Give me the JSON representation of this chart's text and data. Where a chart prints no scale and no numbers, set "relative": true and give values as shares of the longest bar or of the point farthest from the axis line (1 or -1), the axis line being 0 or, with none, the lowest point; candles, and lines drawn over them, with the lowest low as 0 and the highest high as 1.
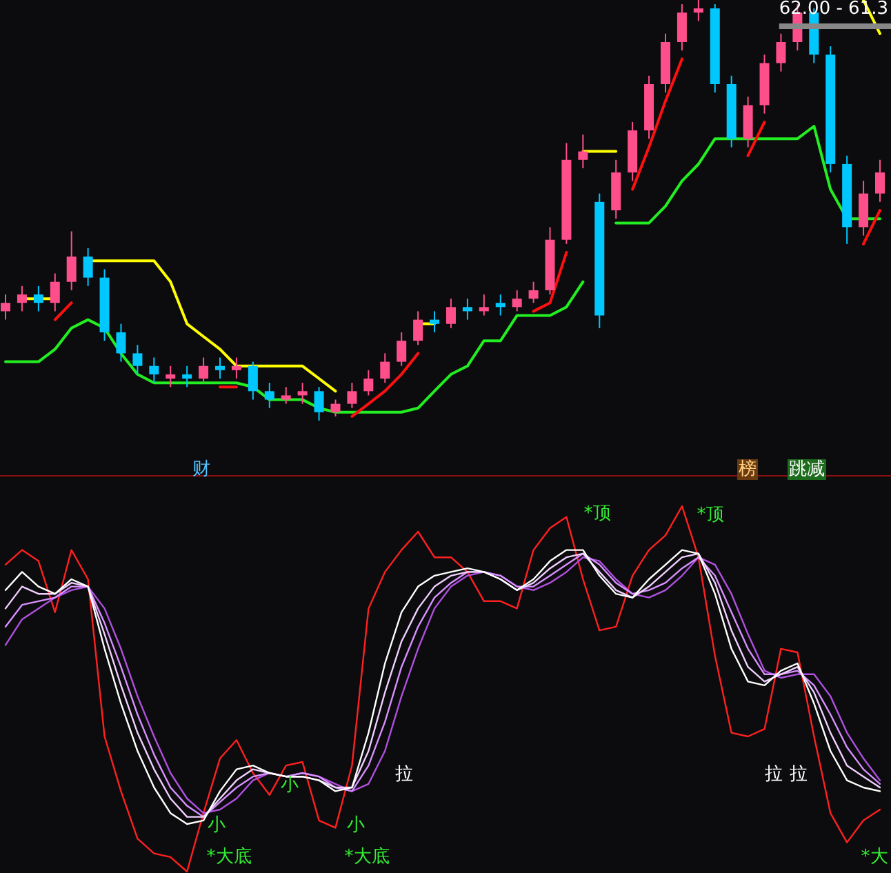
{
  "chart_data": [
    {
      "type": "candlestick",
      "relative": true,
      "categories": [
        null,
        null,
        null,
        null,
        null,
        null,
        null,
        null,
        null,
        null,
        null,
        null,
        null,
        null,
        null,
        null,
        null,
        null,
        null,
        null,
        null,
        null,
        null,
        null,
        null,
        null,
        null,
        null,
        null,
        null,
        null,
        null,
        null,
        null,
        null,
        null,
        null,
        null,
        null,
        null,
        null,
        null,
        null,
        null,
        null,
        null,
        null,
        null,
        null,
        null,
        null,
        null,
        null,
        null
      ],
      "ohlc": [
        [
          0.26,
          0.3,
          0.24,
          0.28
        ],
        [
          0.28,
          0.32,
          0.26,
          0.3
        ],
        [
          0.3,
          0.32,
          0.26,
          0.28
        ],
        [
          0.28,
          0.35,
          0.26,
          0.33
        ],
        [
          0.33,
          0.45,
          0.31,
          0.39
        ],
        [
          0.39,
          0.41,
          0.32,
          0.34
        ],
        [
          0.34,
          0.36,
          0.19,
          0.21
        ],
        [
          0.21,
          0.23,
          0.14,
          0.16
        ],
        [
          0.16,
          0.18,
          0.11,
          0.13
        ],
        [
          0.13,
          0.15,
          0.09,
          0.11
        ],
        [
          0.1,
          0.13,
          0.08,
          0.11
        ],
        [
          0.11,
          0.13,
          0.08,
          0.1
        ],
        [
          0.1,
          0.15,
          0.09,
          0.13
        ],
        [
          0.13,
          0.15,
          0.1,
          0.12
        ],
        [
          0.12,
          0.15,
          0.1,
          0.13
        ],
        [
          0.13,
          0.14,
          0.05,
          0.07
        ],
        [
          0.07,
          0.09,
          0.03,
          0.05
        ],
        [
          0.05,
          0.08,
          0.04,
          0.06
        ],
        [
          0.06,
          0.09,
          0.04,
          0.07
        ],
        [
          0.07,
          0.08,
          0.0,
          0.02
        ],
        [
          0.02,
          0.05,
          0.01,
          0.04
        ],
        [
          0.04,
          0.09,
          0.03,
          0.07
        ],
        [
          0.07,
          0.12,
          0.06,
          0.1
        ],
        [
          0.1,
          0.16,
          0.09,
          0.14
        ],
        [
          0.14,
          0.21,
          0.13,
          0.19
        ],
        [
          0.19,
          0.26,
          0.18,
          0.24
        ],
        [
          0.24,
          0.26,
          0.21,
          0.23
        ],
        [
          0.23,
          0.29,
          0.22,
          0.27
        ],
        [
          0.27,
          0.29,
          0.24,
          0.26
        ],
        [
          0.26,
          0.3,
          0.25,
          0.27
        ],
        [
          0.28,
          0.3,
          0.25,
          0.27
        ],
        [
          0.27,
          0.31,
          0.26,
          0.29
        ],
        [
          0.29,
          0.33,
          0.28,
          0.31
        ],
        [
          0.31,
          0.46,
          0.3,
          0.43
        ],
        [
          0.43,
          0.66,
          0.42,
          0.62
        ],
        [
          0.62,
          0.68,
          0.6,
          0.64
        ],
        [
          0.52,
          0.54,
          0.22,
          0.25
        ],
        [
          0.5,
          0.62,
          0.48,
          0.59
        ],
        [
          0.59,
          0.71,
          0.57,
          0.69
        ],
        [
          0.69,
          0.82,
          0.67,
          0.8
        ],
        [
          0.8,
          0.92,
          0.78,
          0.9
        ],
        [
          0.9,
          0.99,
          0.88,
          0.97
        ],
        [
          0.97,
          1.0,
          0.95,
          0.98
        ],
        [
          0.98,
          0.99,
          0.78,
          0.8
        ],
        [
          0.8,
          0.82,
          0.65,
          0.67
        ],
        [
          0.67,
          0.77,
          0.65,
          0.75
        ],
        [
          0.75,
          0.87,
          0.73,
          0.85
        ],
        [
          0.85,
          0.92,
          0.83,
          0.9
        ],
        [
          0.9,
          0.99,
          0.88,
          0.97
        ],
        [
          0.97,
          0.98,
          0.85,
          0.87
        ],
        [
          0.87,
          0.89,
          0.59,
          0.61
        ],
        [
          0.61,
          0.63,
          0.42,
          0.46
        ],
        [
          0.46,
          0.57,
          0.44,
          0.54
        ],
        [
          0.54,
          0.62,
          0.52,
          0.59
        ]
      ],
      "colors": [
        "#ff4f8b",
        "#ff4f8b",
        "#00c8ff",
        "#ff4f8b",
        "#ff4f8b",
        "#00c8ff",
        "#00c8ff",
        "#00c8ff",
        "#00c8ff",
        "#00c8ff",
        "#ff4f8b",
        "#00c8ff",
        "#ff4f8b",
        "#00c8ff",
        "#ff4f8b",
        "#00c8ff",
        "#00c8ff",
        "#ff4f8b",
        "#ff4f8b",
        "#00c8ff",
        "#ff4f8b",
        "#ff4f8b",
        "#ff4f8b",
        "#ff4f8b",
        "#ff4f8b",
        "#ff4f8b",
        "#00c8ff",
        "#ff4f8b",
        "#00c8ff",
        "#ff4f8b",
        "#00c8ff",
        "#ff4f8b",
        "#ff4f8b",
        "#ff4f8b",
        "#ff4f8b",
        "#ff4f8b",
        "#00c8ff",
        "#ff4f8b",
        "#ff4f8b",
        "#ff4f8b",
        "#ff4f8b",
        "#ff4f8b",
        "#ff4f8b",
        "#00c8ff",
        "#00c8ff",
        "#ff4f8b",
        "#ff4f8b",
        "#ff4f8b",
        "#ff4f8b",
        "#00c8ff",
        "#00c8ff",
        "#00c8ff",
        "#ff4f8b",
        "#ff4f8b"
      ],
      "series": [
        {
          "type": "line",
          "color": "#ffff00",
          "values": [
            null,
            0.29,
            0.29,
            0.29,
            null,
            0.38,
            0.38,
            0.38,
            0.38,
            0.38,
            0.33,
            0.23,
            0.2,
            0.17,
            0.13,
            0.13,
            0.13,
            0.13,
            0.13,
            0.1,
            0.07,
            null,
            null,
            null,
            null,
            0.23,
            0.23,
            null,
            null,
            null,
            null,
            null,
            null,
            null,
            null,
            0.64,
            0.64,
            0.64,
            null,
            null,
            null,
            null,
            null,
            null,
            null,
            null,
            null,
            null,
            null,
            null,
            null,
            null,
            1.0,
            0.92
          ]
        },
        {
          "type": "line",
          "color": "#22ee22",
          "values": [
            0.14,
            0.14,
            0.14,
            0.17,
            0.22,
            0.24,
            0.22,
            0.16,
            0.11,
            0.09,
            0.09,
            0.09,
            0.09,
            0.09,
            0.09,
            0.08,
            0.05,
            0.05,
            0.05,
            0.03,
            0.02,
            0.02,
            0.02,
            0.02,
            0.02,
            0.03,
            0.07,
            0.11,
            0.13,
            0.19,
            0.19,
            0.25,
            0.25,
            0.25,
            0.27,
            0.33,
            null,
            0.47,
            0.47,
            0.47,
            0.51,
            0.57,
            0.61,
            0.67,
            0.67,
            0.67,
            0.67,
            0.67,
            0.67,
            0.7,
            0.55,
            0.48,
            0.48,
            0.48
          ]
        },
        {
          "type": "line",
          "color": "#ff1010",
          "values": [
            null,
            null,
            null,
            0.24,
            0.28,
            null,
            null,
            null,
            null,
            null,
            null,
            null,
            null,
            0.08,
            0.08,
            null,
            null,
            null,
            null,
            null,
            null,
            0.01,
            0.04,
            0.07,
            0.11,
            0.16,
            null,
            null,
            null,
            null,
            null,
            null,
            0.26,
            0.28,
            0.4,
            null,
            null,
            null,
            0.55,
            0.65,
            0.76,
            0.86,
            null,
            null,
            null,
            0.63,
            0.71,
            null,
            null,
            null,
            null,
            null,
            0.42,
            0.5
          ]
        }
      ],
      "annotations": [
        "财",
        "榜",
        "跳减",
        "62.00 - 61.3"
      ]
    },
    {
      "type": "line",
      "relative": true,
      "categories": [
        null,
        null,
        null,
        null,
        null,
        null,
        null,
        null,
        null,
        null,
        null,
        null,
        null,
        null,
        null,
        null,
        null,
        null,
        null,
        null,
        null,
        null,
        null,
        null,
        null,
        null,
        null,
        null,
        null,
        null,
        null,
        null,
        null,
        null,
        null,
        null,
        null,
        null,
        null,
        null,
        null,
        null,
        null,
        null,
        null,
        null,
        null,
        null,
        null,
        null,
        null,
        null,
        null,
        null
      ],
      "series": [
        {
          "color": "#ff2020",
          "values": [
            0.84,
            0.88,
            0.85,
            0.71,
            0.88,
            0.8,
            0.37,
            0.22,
            0.09,
            0.05,
            0.04,
            0.0,
            0.16,
            0.31,
            0.36,
            0.27,
            0.21,
            0.29,
            0.3,
            0.14,
            0.12,
            0.29,
            0.72,
            0.82,
            0.88,
            0.93,
            0.86,
            0.86,
            0.82,
            0.74,
            0.74,
            0.72,
            0.88,
            0.94,
            0.97,
            0.8,
            0.66,
            0.67,
            0.81,
            0.88,
            0.92,
            1.0,
            0.86,
            0.59,
            0.38,
            0.37,
            0.39,
            0.61,
            0.6,
            0.37,
            0.16,
            0.08,
            0.14,
            0.17
          ]
        },
        {
          "color": "#b050e0",
          "values": [
            0.62,
            0.69,
            0.72,
            0.75,
            0.77,
            0.78,
            0.72,
            0.61,
            0.48,
            0.37,
            0.27,
            0.2,
            0.16,
            0.17,
            0.2,
            0.25,
            0.27,
            0.26,
            0.27,
            0.26,
            0.24,
            0.22,
            0.24,
            0.33,
            0.48,
            0.61,
            0.72,
            0.78,
            0.81,
            0.82,
            0.81,
            0.78,
            0.77,
            0.79,
            0.82,
            0.86,
            0.85,
            0.8,
            0.76,
            0.75,
            0.77,
            0.81,
            0.86,
            0.84,
            0.76,
            0.65,
            0.55,
            0.53,
            0.54,
            0.54,
            0.48,
            0.38,
            0.31,
            0.25
          ]
        },
        {
          "color": "#d890ff",
          "values": [
            0.67,
            0.73,
            0.74,
            0.75,
            0.78,
            0.78,
            0.68,
            0.56,
            0.43,
            0.32,
            0.23,
            0.18,
            0.15,
            0.19,
            0.23,
            0.26,
            0.27,
            0.26,
            0.27,
            0.26,
            0.23,
            0.22,
            0.29,
            0.41,
            0.56,
            0.67,
            0.75,
            0.79,
            0.82,
            0.82,
            0.81,
            0.78,
            0.78,
            0.81,
            0.84,
            0.87,
            0.84,
            0.79,
            0.76,
            0.77,
            0.79,
            0.83,
            0.86,
            0.81,
            0.71,
            0.61,
            0.54,
            0.54,
            0.55,
            0.51,
            0.43,
            0.34,
            0.28,
            0.24
          ]
        },
        {
          "color": "#f0d0ff",
          "values": [
            0.72,
            0.78,
            0.76,
            0.76,
            0.79,
            0.78,
            0.65,
            0.51,
            0.38,
            0.28,
            0.2,
            0.15,
            0.15,
            0.2,
            0.25,
            0.28,
            0.27,
            0.26,
            0.26,
            0.25,
            0.23,
            0.23,
            0.33,
            0.49,
            0.63,
            0.72,
            0.78,
            0.81,
            0.82,
            0.82,
            0.8,
            0.77,
            0.79,
            0.83,
            0.86,
            0.87,
            0.82,
            0.77,
            0.75,
            0.78,
            0.82,
            0.86,
            0.87,
            0.79,
            0.66,
            0.56,
            0.52,
            0.54,
            0.56,
            0.49,
            0.38,
            0.29,
            0.26,
            0.23
          ]
        },
        {
          "color": "#ffffff",
          "values": [
            0.77,
            0.82,
            0.78,
            0.76,
            0.8,
            0.78,
            0.61,
            0.46,
            0.33,
            0.23,
            0.16,
            0.13,
            0.14,
            0.22,
            0.28,
            0.29,
            0.27,
            0.26,
            0.26,
            0.25,
            0.22,
            0.23,
            0.38,
            0.57,
            0.71,
            0.78,
            0.81,
            0.82,
            0.83,
            0.82,
            0.8,
            0.77,
            0.8,
            0.85,
            0.88,
            0.88,
            0.81,
            0.76,
            0.75,
            0.8,
            0.84,
            0.88,
            0.87,
            0.76,
            0.61,
            0.52,
            0.51,
            0.55,
            0.57,
            0.46,
            0.33,
            0.25,
            0.23,
            0.22
          ]
        }
      ],
      "annotations": [
        "*顶",
        "*顶",
        "*大底",
        "*大底",
        "*大",
        "小",
        "小",
        "小",
        "拉",
        "拉",
        "拉"
      ]
    }
  ]
}
